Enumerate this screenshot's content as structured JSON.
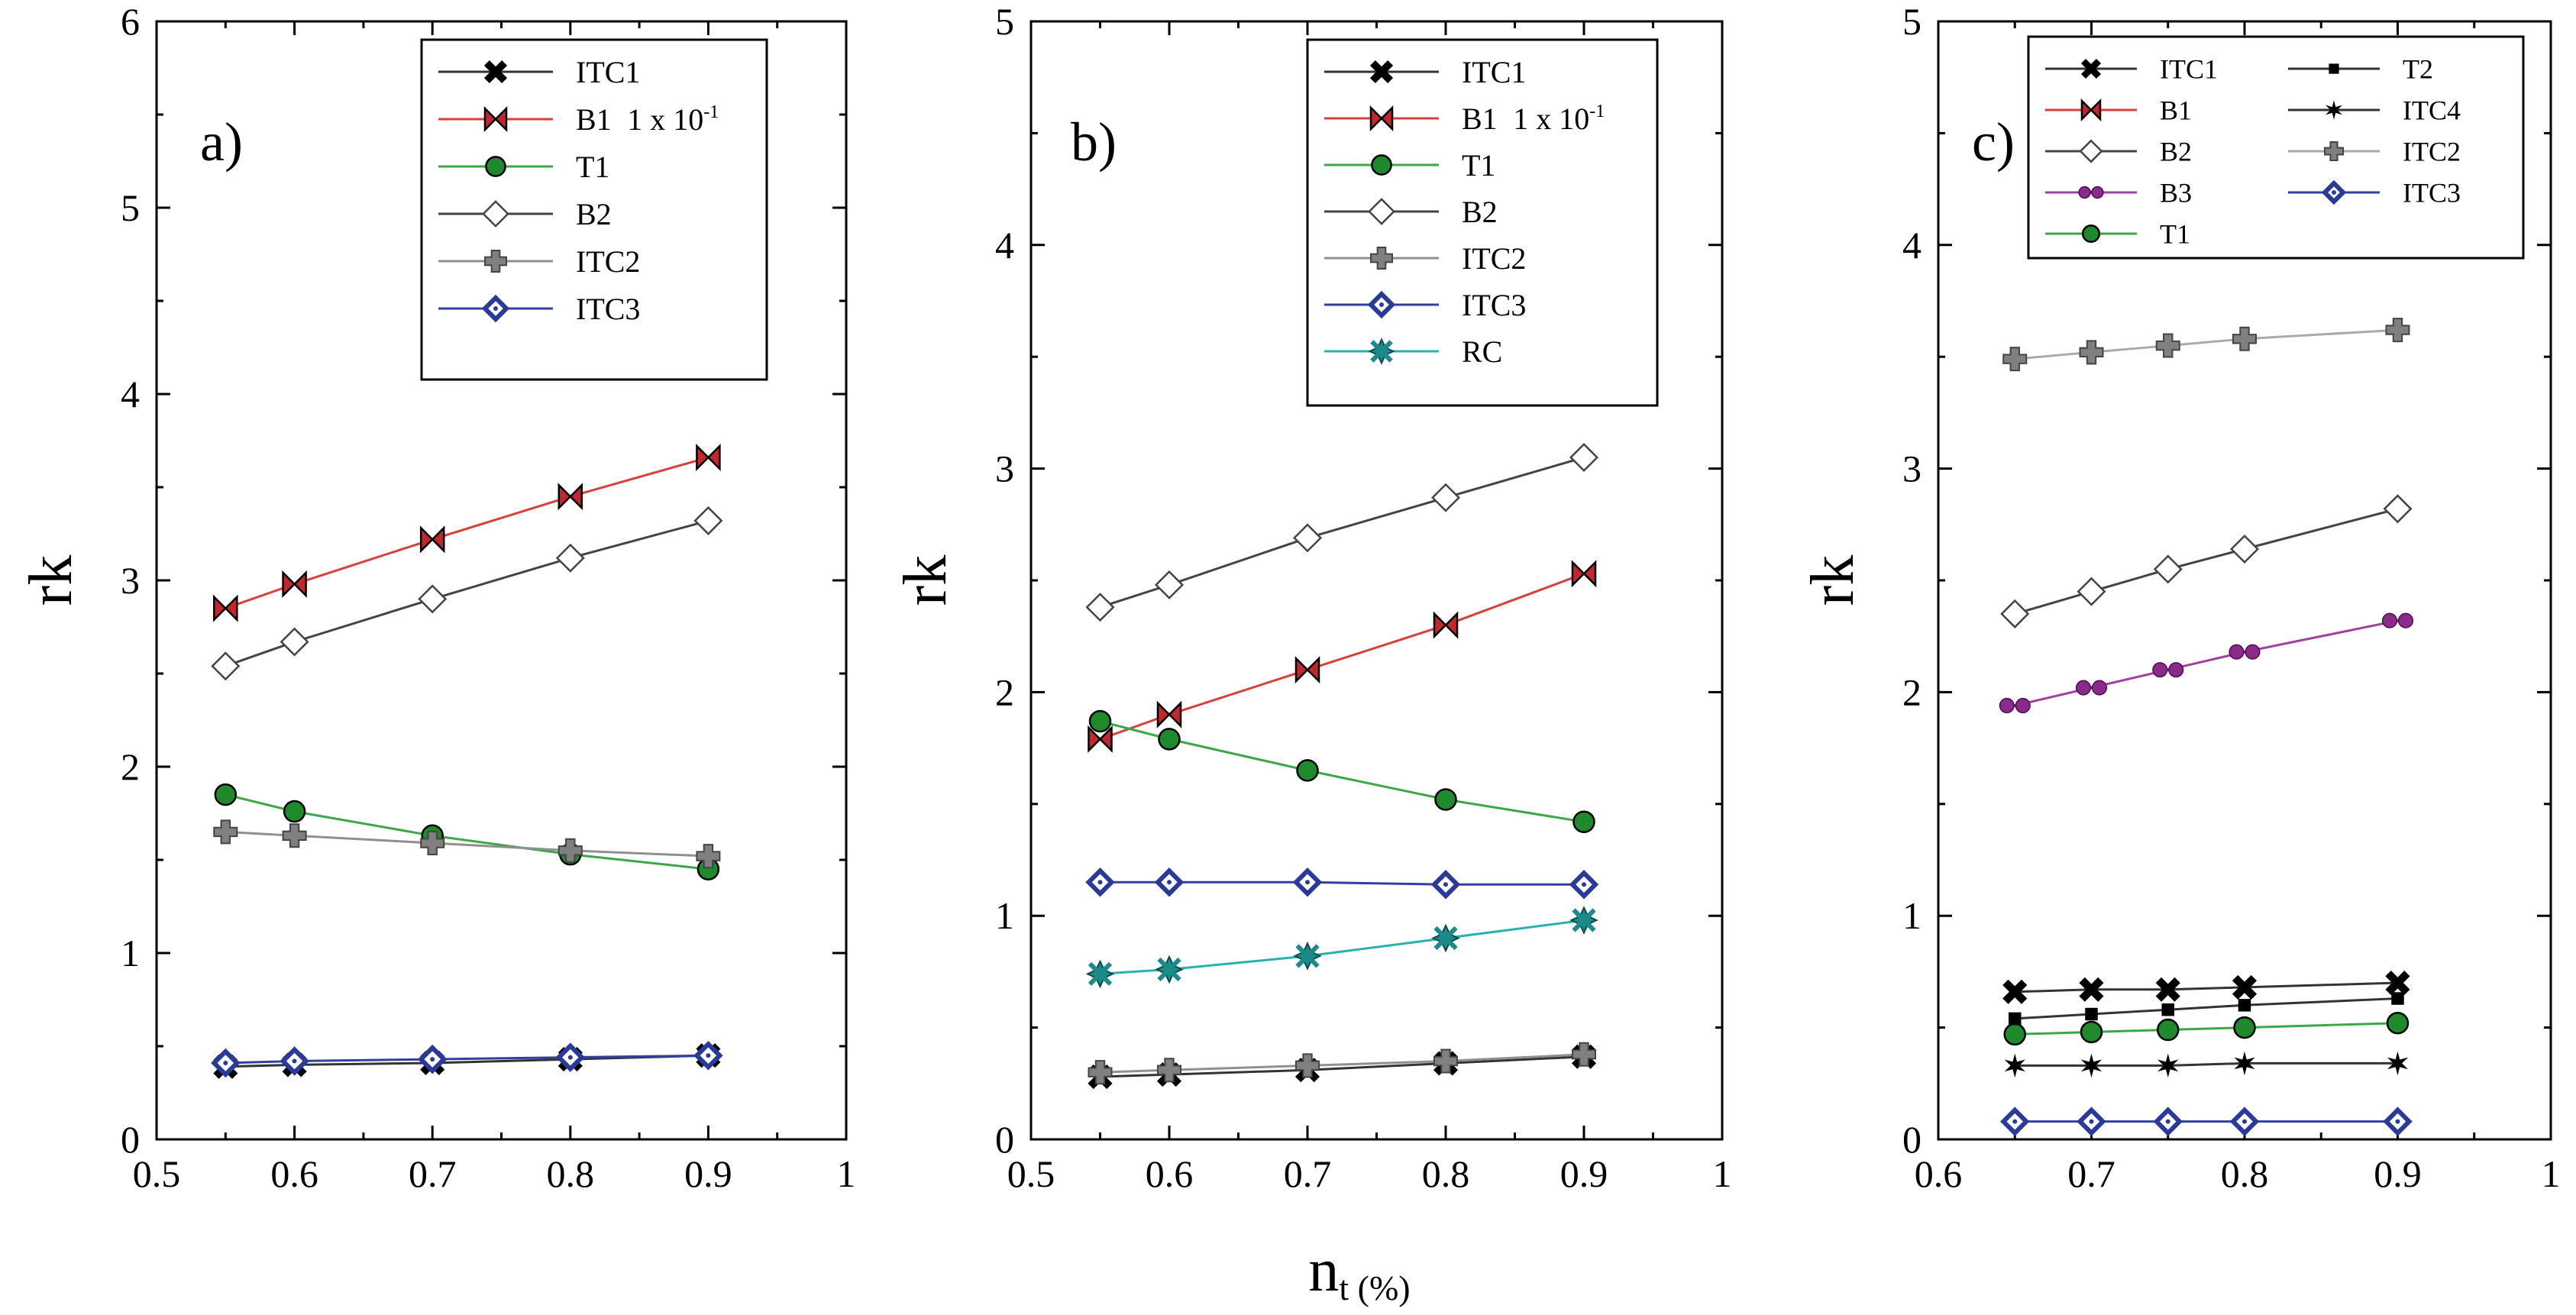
{
  "figure": {
    "xlabel_main": "n",
    "xlabel_sub": "t (%)"
  },
  "chart_data": [
    {
      "type": "line",
      "panel_label": "a)",
      "ylabel": "rk",
      "xlim": [
        0.5,
        1.0
      ],
      "ylim": [
        0,
        6
      ],
      "xticks": [
        "0.5",
        "0.6",
        "0.7",
        "0.8",
        "0.9",
        "1"
      ],
      "yticks": [
        "0",
        "1",
        "2",
        "3",
        "4",
        "5",
        "6"
      ],
      "grid": false,
      "legend_position": "top-right",
      "series": [
        {
          "name": "ITC1",
          "marker": "x",
          "color": "#000000",
          "line_color": "#333333",
          "x": [
            0.55,
            0.6,
            0.7,
            0.8,
            0.9
          ],
          "y": [
            0.39,
            0.4,
            0.41,
            0.43,
            0.45
          ]
        },
        {
          "name": "B1",
          "suffix": "1 x 10",
          "suffix_exp": "-1",
          "marker": "bowtie",
          "color": "#c0282d",
          "line_color": "#d9403c",
          "x": [
            0.55,
            0.6,
            0.7,
            0.8,
            0.9
          ],
          "y": [
            2.85,
            2.98,
            3.22,
            3.45,
            3.66
          ]
        },
        {
          "name": "T1",
          "marker": "circle",
          "color": "#1f8a2c",
          "line_color": "#3aa845",
          "x": [
            0.55,
            0.6,
            0.7,
            0.8,
            0.9
          ],
          "y": [
            1.85,
            1.76,
            1.63,
            1.53,
            1.45
          ]
        },
        {
          "name": "B2",
          "marker": "diamond-open",
          "color": "#ffffff",
          "line_color": "#444444",
          "x": [
            0.55,
            0.6,
            0.7,
            0.8,
            0.9
          ],
          "y": [
            2.54,
            2.67,
            2.9,
            3.12,
            3.32
          ]
        },
        {
          "name": "ITC2",
          "marker": "plus",
          "color": "#808080",
          "line_color": "#909090",
          "x": [
            0.55,
            0.6,
            0.7,
            0.8,
            0.9
          ],
          "y": [
            1.65,
            1.63,
            1.59,
            1.55,
            1.52
          ]
        },
        {
          "name": "ITC3",
          "marker": "diamond-blue",
          "color": "#2a3a9a",
          "line_color": "#3040a0",
          "x": [
            0.55,
            0.6,
            0.7,
            0.8,
            0.9
          ],
          "y": [
            0.41,
            0.42,
            0.43,
            0.44,
            0.45
          ]
        }
      ]
    },
    {
      "type": "line",
      "panel_label": "b)",
      "ylabel": "rk",
      "xlim": [
        0.5,
        1.0
      ],
      "ylim": [
        0,
        5
      ],
      "xticks": [
        "0.5",
        "0.6",
        "0.7",
        "0.8",
        "0.9",
        "1"
      ],
      "yticks": [
        "0",
        "1",
        "2",
        "3",
        "4",
        "5"
      ],
      "grid": false,
      "legend_position": "top-right",
      "series": [
        {
          "name": "ITC1",
          "marker": "x",
          "color": "#000000",
          "line_color": "#333333",
          "x": [
            0.55,
            0.6,
            0.7,
            0.8,
            0.9
          ],
          "y": [
            0.28,
            0.29,
            0.31,
            0.34,
            0.37
          ]
        },
        {
          "name": "B1",
          "suffix": "1 x 10",
          "suffix_exp": "-1",
          "marker": "bowtie",
          "color": "#c0282d",
          "line_color": "#d9403c",
          "x": [
            0.55,
            0.6,
            0.7,
            0.8,
            0.9
          ],
          "y": [
            1.79,
            1.9,
            2.1,
            2.3,
            2.53
          ]
        },
        {
          "name": "T1",
          "marker": "circle",
          "color": "#1f8a2c",
          "line_color": "#3aa845",
          "x": [
            0.55,
            0.6,
            0.7,
            0.8,
            0.9
          ],
          "y": [
            1.87,
            1.79,
            1.65,
            1.52,
            1.42
          ]
        },
        {
          "name": "B2",
          "marker": "diamond-open",
          "color": "#ffffff",
          "line_color": "#444444",
          "x": [
            0.55,
            0.6,
            0.7,
            0.8,
            0.9
          ],
          "y": [
            2.38,
            2.48,
            2.69,
            2.87,
            3.05
          ]
        },
        {
          "name": "ITC2",
          "marker": "plus",
          "color": "#808080",
          "line_color": "#909090",
          "x": [
            0.55,
            0.6,
            0.7,
            0.8,
            0.9
          ],
          "y": [
            0.3,
            0.31,
            0.33,
            0.35,
            0.38
          ]
        },
        {
          "name": "ITC3",
          "marker": "diamond-blue",
          "color": "#2a3a9a",
          "line_color": "#3040a0",
          "x": [
            0.55,
            0.6,
            0.7,
            0.8,
            0.9
          ],
          "y": [
            1.15,
            1.15,
            1.15,
            1.14,
            1.14
          ]
        },
        {
          "name": "RC",
          "marker": "star4",
          "color": "#1b8a8a",
          "line_color": "#2ab0b0",
          "x": [
            0.55,
            0.6,
            0.7,
            0.8,
            0.9
          ],
          "y": [
            0.74,
            0.76,
            0.82,
            0.9,
            0.98
          ]
        }
      ]
    },
    {
      "type": "line",
      "panel_label": "c)",
      "ylabel": "rk",
      "xlim": [
        0.6,
        1.0
      ],
      "ylim": [
        0,
        5
      ],
      "xticks": [
        "0.6",
        "0.7",
        "0.8",
        "0.9",
        "1"
      ],
      "yticks": [
        "0",
        "1",
        "2",
        "3",
        "4",
        "5"
      ],
      "grid": false,
      "legend_position": "top-right",
      "legend_columns": 2,
      "series": [
        {
          "name": "ITC1",
          "marker": "x",
          "color": "#000000",
          "line_color": "#333333",
          "x": [
            0.65,
            0.7,
            0.75,
            0.8,
            0.9
          ],
          "y": [
            0.66,
            0.67,
            0.67,
            0.68,
            0.7
          ]
        },
        {
          "name": "B1",
          "marker": "bowtie",
          "color": "#c0282d",
          "line_color": "#d9403c",
          "x": [],
          "y": []
        },
        {
          "name": "B2",
          "marker": "diamond-open",
          "color": "#ffffff",
          "line_color": "#444444",
          "x": [
            0.65,
            0.7,
            0.75,
            0.8,
            0.9
          ],
          "y": [
            2.35,
            2.45,
            2.55,
            2.64,
            2.82
          ]
        },
        {
          "name": "B3",
          "marker": "dumbbell",
          "color": "#8a2a8a",
          "line_color": "#a040a0",
          "x": [
            0.65,
            0.7,
            0.75,
            0.8,
            0.9
          ],
          "y": [
            1.94,
            2.02,
            2.1,
            2.18,
            2.32
          ]
        },
        {
          "name": "T1",
          "marker": "circle",
          "color": "#1f8a2c",
          "line_color": "#3aa845",
          "x": [
            0.65,
            0.7,
            0.75,
            0.8,
            0.9
          ],
          "y": [
            0.47,
            0.48,
            0.49,
            0.5,
            0.52
          ]
        },
        {
          "name": "T2",
          "marker": "square",
          "color": "#000000",
          "line_color": "#333333",
          "x": [
            0.65,
            0.7,
            0.75,
            0.8,
            0.9
          ],
          "y": [
            0.54,
            0.56,
            0.58,
            0.6,
            0.63
          ]
        },
        {
          "name": "ITC4",
          "marker": "star6",
          "color": "#000000",
          "line_color": "#333333",
          "x": [
            0.65,
            0.7,
            0.75,
            0.8,
            0.9
          ],
          "y": [
            0.33,
            0.33,
            0.33,
            0.34,
            0.34
          ]
        },
        {
          "name": "ITC2",
          "marker": "plus",
          "color": "#808080",
          "line_color": "#aaaaaa",
          "x": [
            0.65,
            0.7,
            0.75,
            0.8,
            0.9
          ],
          "y": [
            3.49,
            3.52,
            3.55,
            3.58,
            3.62
          ]
        },
        {
          "name": "ITC3",
          "marker": "diamond-blue",
          "color": "#2a3a9a",
          "line_color": "#3040a0",
          "x": [
            0.65,
            0.7,
            0.75,
            0.8,
            0.9
          ],
          "y": [
            0.08,
            0.08,
            0.08,
            0.08,
            0.08
          ]
        }
      ]
    }
  ]
}
